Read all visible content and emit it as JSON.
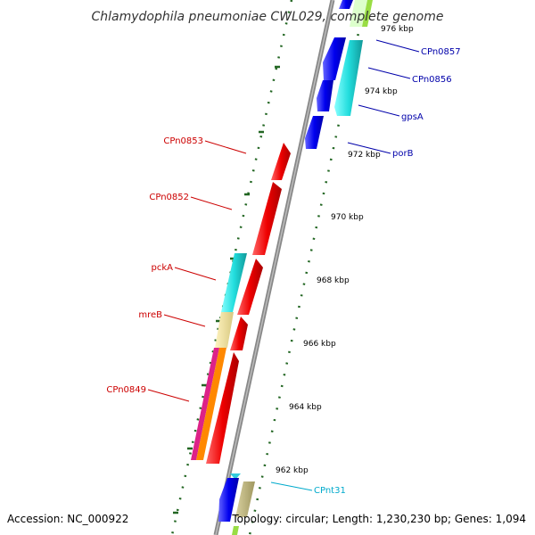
{
  "title": "Chlamydophila pneumoniae CWL029, complete genome",
  "footer": {
    "accession": "Accession: NC_000922",
    "summary": "Topology: circular; Length: 1,230,230 bp; Genes: 1,094"
  },
  "ticks": [
    "976 kbp",
    "974 kbp",
    "972 kbp",
    "970 kbp",
    "968 kbp",
    "966 kbp",
    "964 kbp",
    "962 kbp"
  ],
  "gene_labels": [
    {
      "name": "CPn0857",
      "strand": "forward",
      "color": "#0000aa"
    },
    {
      "name": "CPn0856",
      "strand": "forward",
      "color": "#0000aa"
    },
    {
      "name": "gpsA",
      "strand": "forward",
      "color": "#0000aa"
    },
    {
      "name": "porB",
      "strand": "forward",
      "color": "#0000aa"
    },
    {
      "name": "CPn0853",
      "strand": "reverse",
      "color": "#cc0000"
    },
    {
      "name": "CPn0852",
      "strand": "reverse",
      "color": "#cc0000"
    },
    {
      "name": "pckA",
      "strand": "reverse",
      "color": "#cc0000"
    },
    {
      "name": "mreB",
      "strand": "reverse",
      "color": "#cc0000"
    },
    {
      "name": "CPn0849",
      "strand": "reverse",
      "color": "#cc0000"
    },
    {
      "name": "CPnt31",
      "strand": "forward",
      "color": "#00aacc"
    }
  ],
  "colors": {
    "forward_gene": "#0000ee",
    "reverse_gene": "#ee0000",
    "trna": "#33ccdd",
    "feature_cyan": "#22dddd",
    "feature_khaki": "#eedd99",
    "feature_magenta": "#dd2288",
    "feature_orange": "#ff8800",
    "backbone": "#888888",
    "tick_mark": "#226622"
  }
}
